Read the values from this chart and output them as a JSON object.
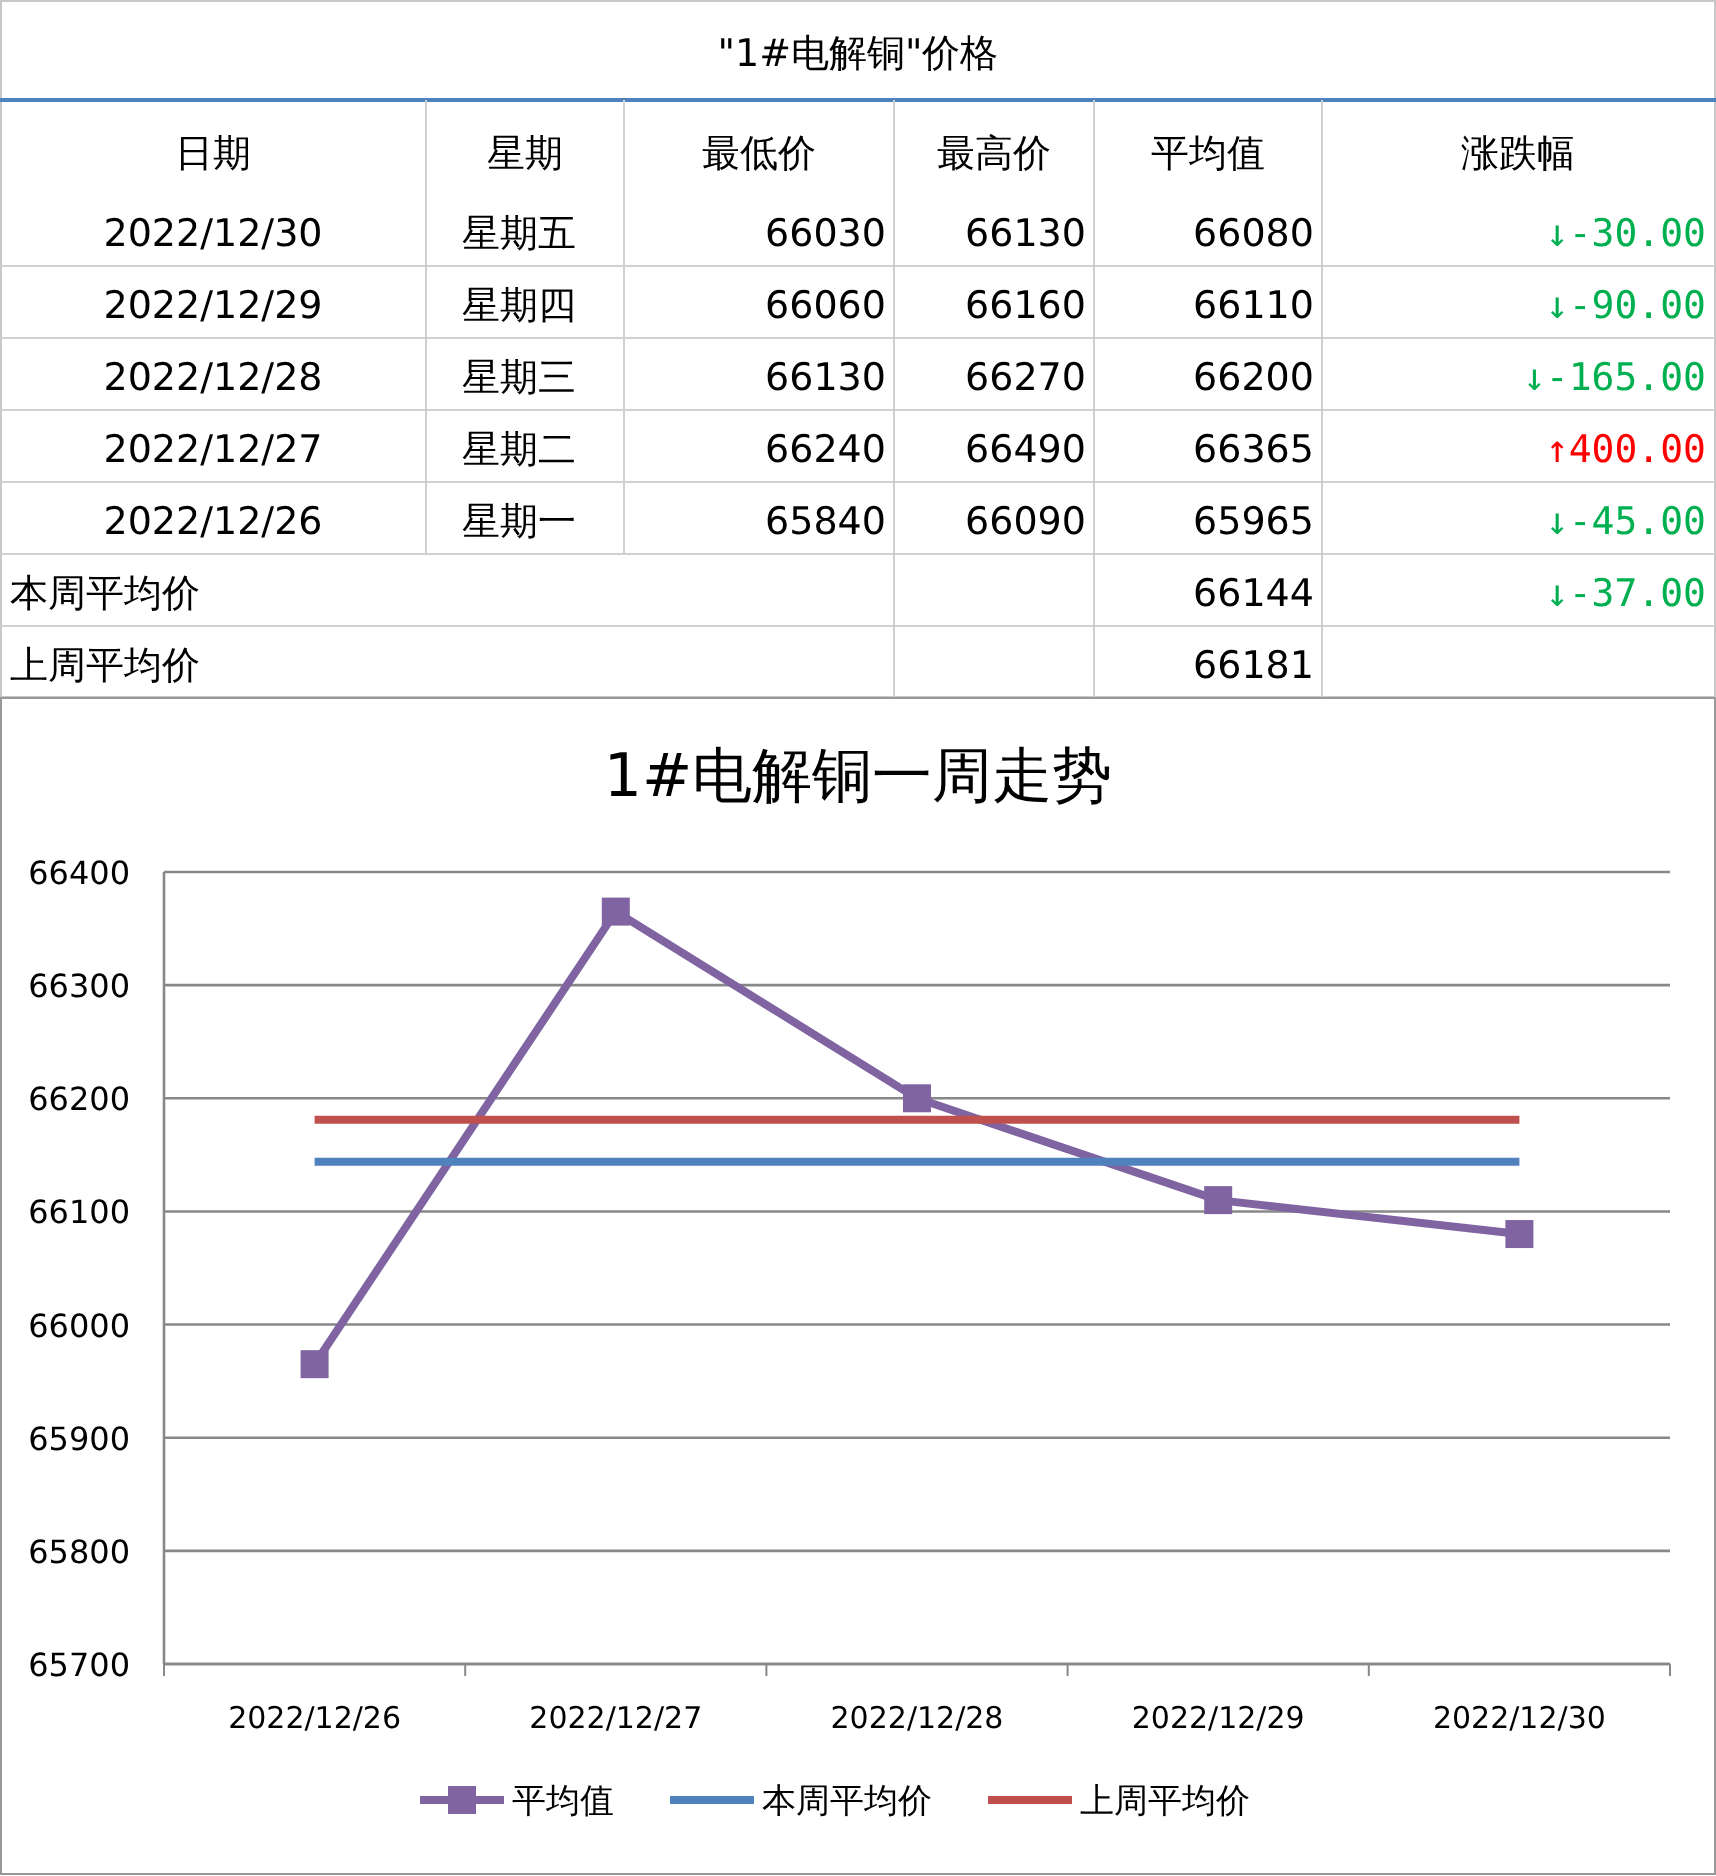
{
  "chart_data": [
    {
      "type": "other",
      "title": "\"1#电解铜\"价格",
      "categories": [
        "日期",
        "星期",
        "最低价",
        "最高价",
        "平均值",
        "涨跌幅"
      ],
      "annotations": [
        "2022/12/30",
        "星期五",
        "66030",
        "66130",
        "66080",
        "↓-30.00",
        "2022/12/29",
        "星期四",
        "66060",
        "66160",
        "66110",
        "↓-90.00",
        "2022/12/28",
        "星期三",
        "66130",
        "66270",
        "66200",
        "↓-165.00",
        "2022/12/27",
        "星期二",
        "66240",
        "66490",
        "66365",
        "↑400.00",
        "2022/12/26",
        "星期一",
        "65840",
        "66090",
        "65965",
        "↓-45.00",
        "本周平均价",
        "66144",
        "↓-37.00",
        "上周平均价",
        "66181"
      ]
    },
    {
      "type": "line",
      "title": "1#电解铜一周走势",
      "categories": [
        "2022/12/26",
        "2022/12/27",
        "2022/12/28",
        "2022/12/29",
        "2022/12/30"
      ],
      "series": [
        {
          "name": "平均值",
          "color": "#8064a2",
          "marker": "square",
          "values": [
            65965,
            66365,
            66200,
            66110,
            66080
          ]
        },
        {
          "name": "本周平均价",
          "color": "#4f81bd",
          "values": [
            66144,
            66144,
            66144,
            66144,
            66144
          ]
        },
        {
          "name": "上周平均价",
          "color": "#c0504d",
          "values": [
            66181,
            66181,
            66181,
            66181,
            66181
          ]
        }
      ],
      "ylim": [
        65700,
        66400
      ],
      "yticks": [
        65700,
        65800,
        65900,
        66000,
        66100,
        66200,
        66300,
        66400
      ],
      "grid": "y",
      "legend": "bottom"
    }
  ]
}
